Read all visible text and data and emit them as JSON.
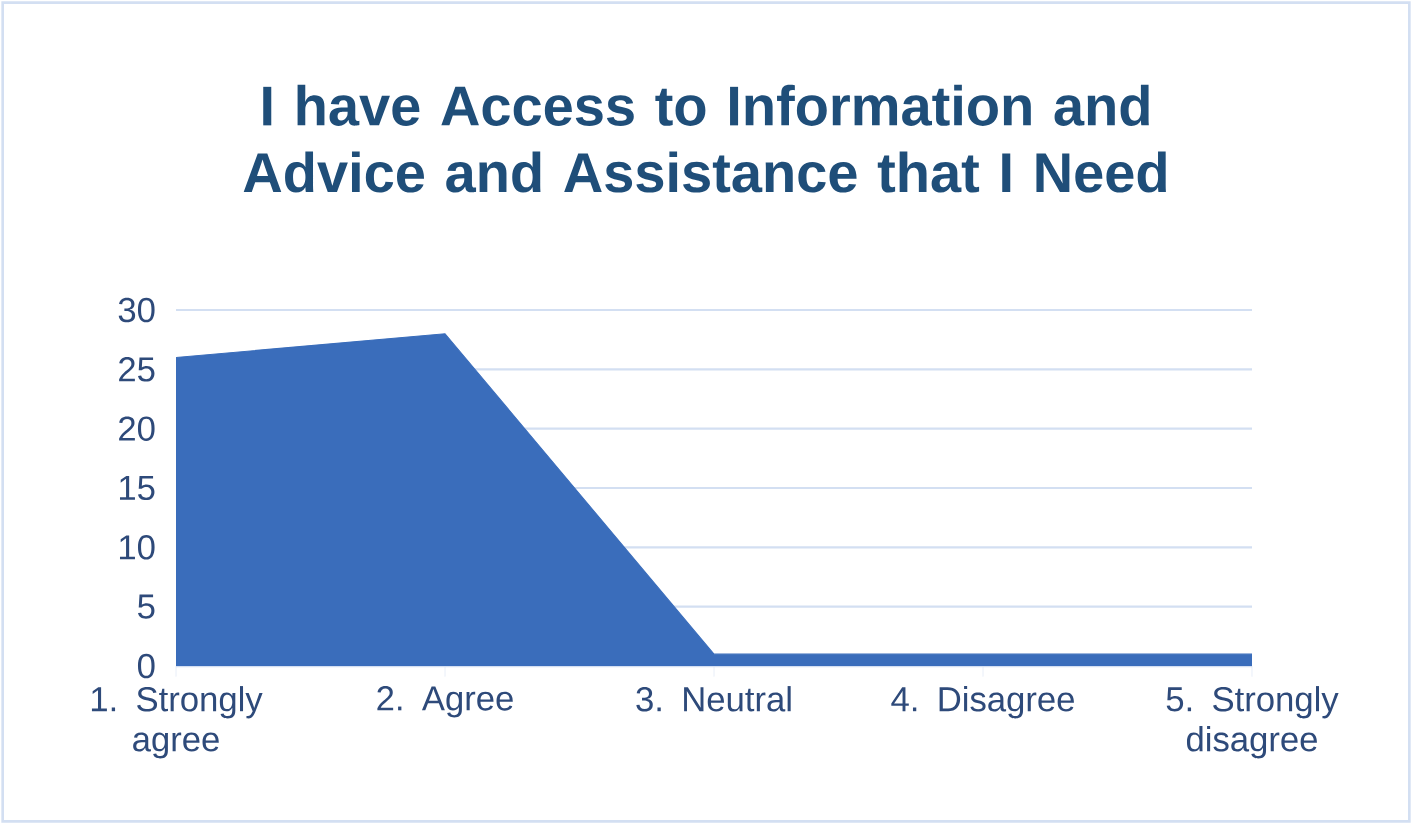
{
  "chart_data": {
    "type": "area",
    "title": "I have Access to Information and Advice and Assistance that I Need",
    "categories": [
      "1.  Strongly agree",
      "2.  Agree",
      "3.  Neutral",
      "4.  Disagree",
      "5.  Strongly disagree"
    ],
    "values": [
      26,
      28,
      1,
      1,
      1
    ],
    "color": "#3a6dbb",
    "ylim": [
      0,
      30
    ],
    "yticks": [
      0,
      5,
      10,
      15,
      20,
      25,
      30
    ],
    "grid": "y"
  }
}
